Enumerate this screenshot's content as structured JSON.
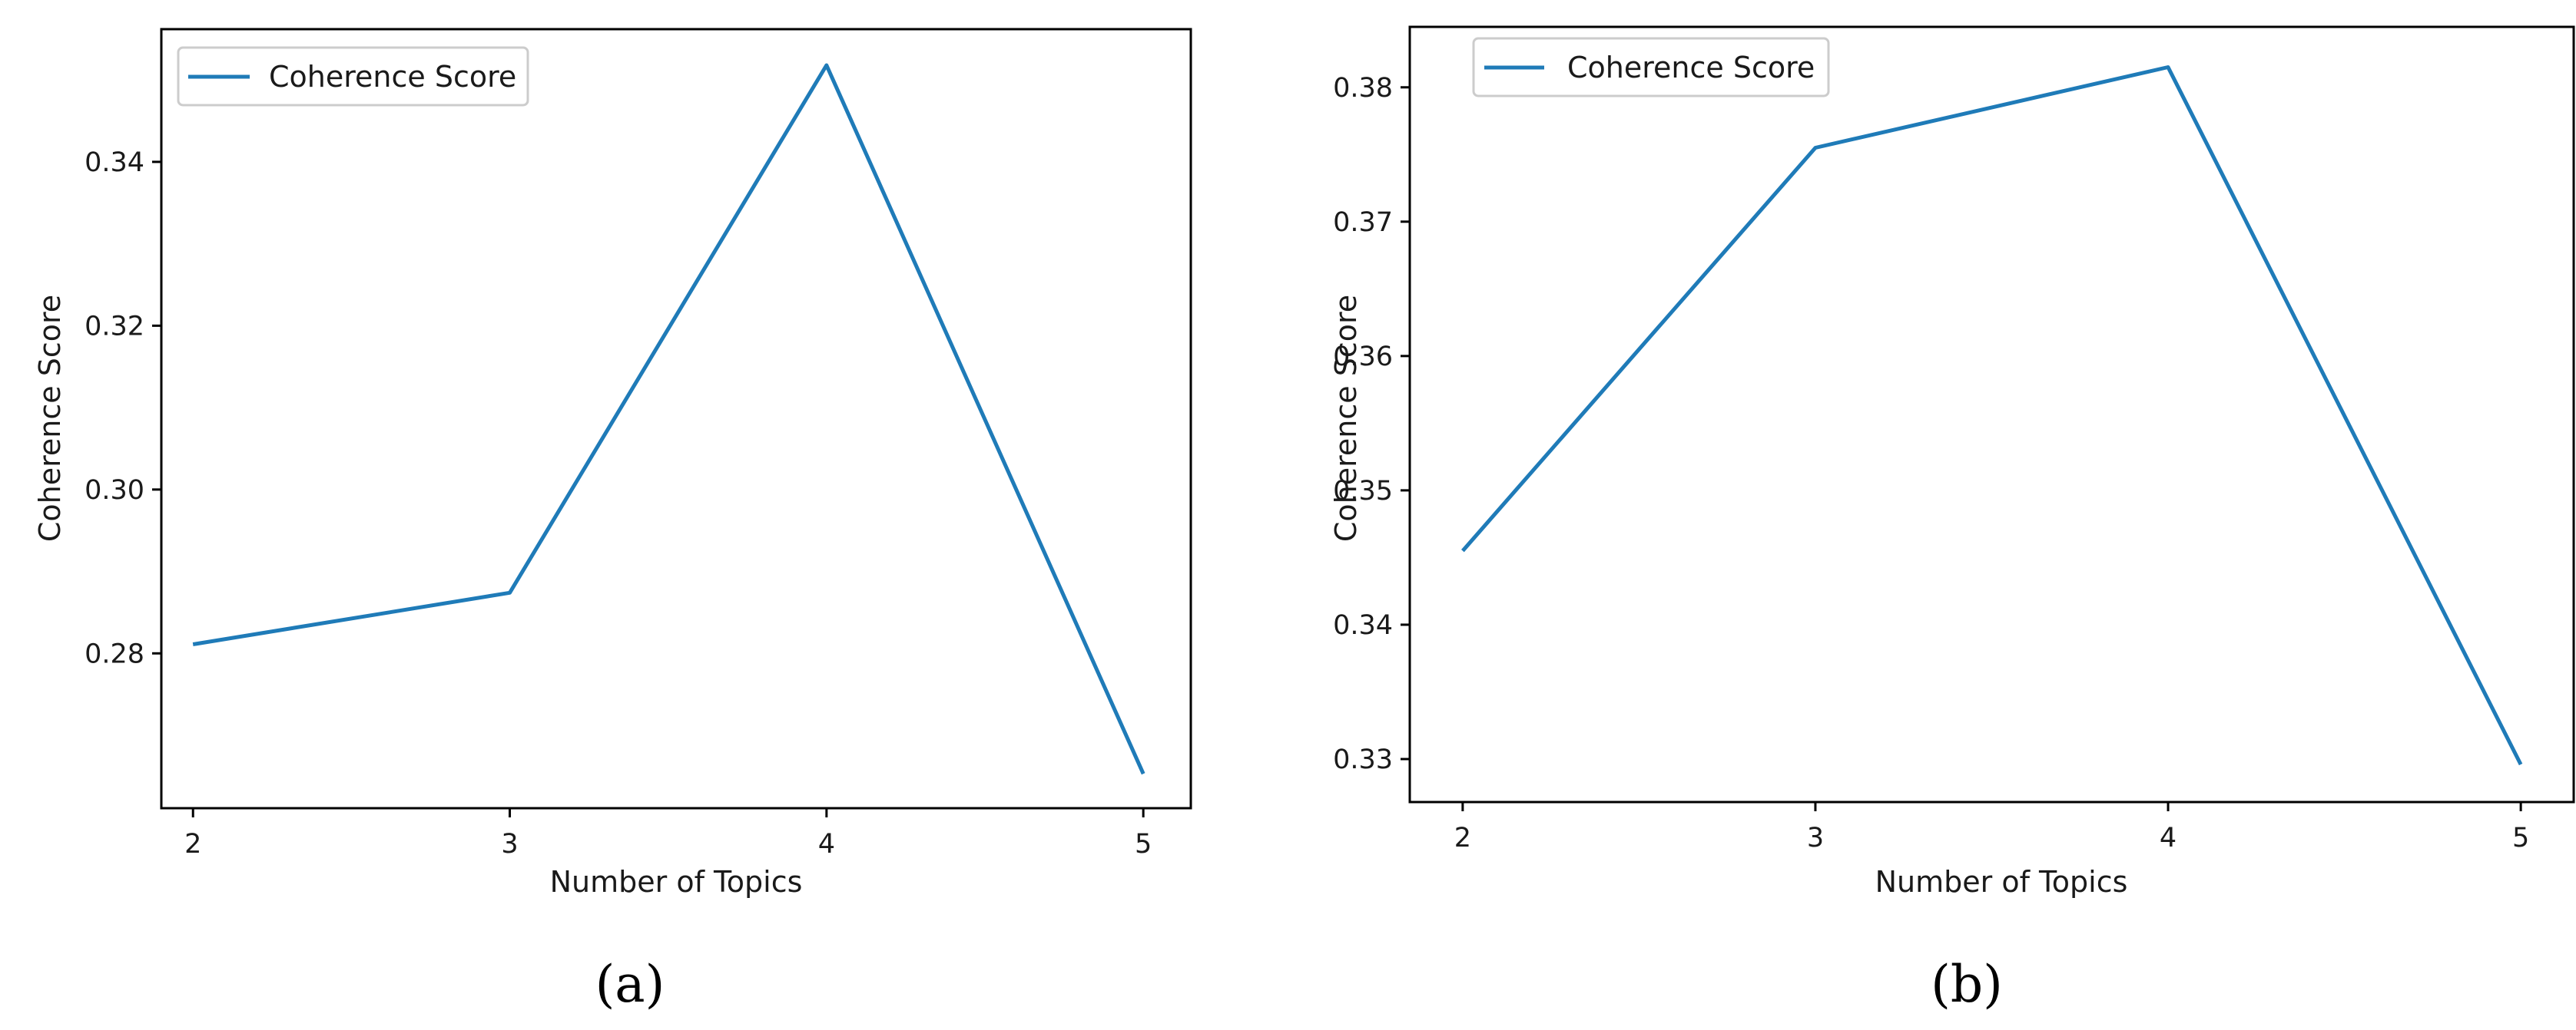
{
  "chart_data": [
    {
      "type": "line",
      "panel_label": "(a)",
      "x": [
        2,
        3,
        4,
        5
      ],
      "xticks": [
        2,
        3,
        4,
        5
      ],
      "xlim": [
        1.9,
        5.15
      ],
      "series": [
        {
          "name": "Coherence Score",
          "values": [
            0.2811,
            0.2874,
            0.3518,
            0.2653
          ]
        }
      ],
      "yticks": [
        0.28,
        0.3,
        0.32,
        0.34
      ],
      "ytick_labels": [
        "0.28",
        "0.30",
        "0.32",
        "0.34"
      ],
      "ylim": [
        0.2611,
        0.3562
      ],
      "xlabel": "Number of Topics",
      "ylabel": "Coherence Score",
      "legend": "top-left",
      "grid": false,
      "line_color": "#1f7bb8"
    },
    {
      "type": "line",
      "panel_label": "(b)",
      "x": [
        2,
        3,
        4,
        5
      ],
      "xticks": [
        2,
        3,
        4,
        5
      ],
      "xlim": [
        1.85,
        5.15
      ],
      "series": [
        {
          "name": "Coherence Score",
          "values": [
            0.3455,
            0.3755,
            0.3815,
            0.3296
          ]
        }
      ],
      "yticks": [
        0.33,
        0.34,
        0.35,
        0.36,
        0.37,
        0.38
      ],
      "ytick_labels": [
        "0.33",
        "0.34",
        "0.35",
        "0.36",
        "0.37",
        "0.38"
      ],
      "ylim": [
        0.3268,
        0.3845
      ],
      "xlabel": "Number of Topics",
      "ylabel": "Coherence Score",
      "legend": "top-left",
      "grid": false,
      "line_color": "#1f7bb8"
    }
  ]
}
